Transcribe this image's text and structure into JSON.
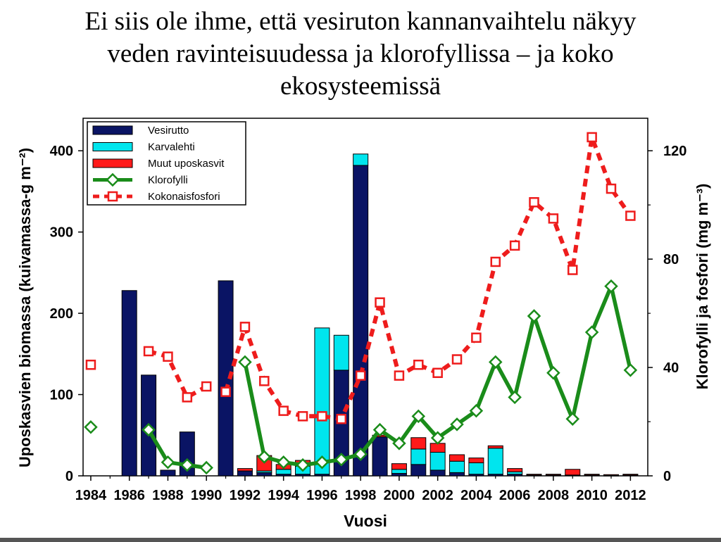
{
  "slide": {
    "title_lines": [
      "Ei siis ole ihme, että vesiruton kannanvaihtelu näkyy",
      "veden ravinteisuudessa ja klorofyllissa – ja koko",
      "ekosysteemissä"
    ]
  },
  "chart_data": {
    "type": "bar+line",
    "title": "",
    "xlabel": "Vuosi",
    "ylabel_left": "Uposkasvien biomassa (kuivamassa-g m⁻²)",
    "ylabel_right": "Klorofylli ja fosfori (mg m⁻³)",
    "ylim_left": [
      0,
      440
    ],
    "ylim_right": [
      0,
      132
    ],
    "yticks_left": [
      0,
      100,
      200,
      300,
      400
    ],
    "yticks_right": [
      0,
      40,
      80,
      120
    ],
    "xlim": [
      1983.6,
      2012.9
    ],
    "xticks": [
      1984,
      1986,
      1988,
      1990,
      1992,
      1994,
      1996,
      1998,
      2000,
      2002,
      2004,
      2006,
      2008,
      2010,
      2012
    ],
    "legend_position": "top-left",
    "bar_series": [
      {
        "name": "Vesirutto",
        "color": "#0a1464",
        "stroke": "#000000",
        "data": [
          [
            1986,
            228
          ],
          [
            1987,
            124
          ],
          [
            1988,
            7
          ],
          [
            1989,
            54
          ],
          [
            1991,
            240
          ],
          [
            1992,
            6
          ],
          [
            1993,
            4
          ],
          [
            1994,
            2
          ],
          [
            1995,
            2
          ],
          [
            1996,
            2
          ],
          [
            1997,
            130
          ],
          [
            1998,
            382
          ],
          [
            1999,
            48
          ],
          [
            2000,
            3
          ],
          [
            2001,
            14
          ],
          [
            2002,
            7
          ],
          [
            2003,
            4
          ],
          [
            2004,
            2
          ],
          [
            2005,
            2
          ],
          [
            2006,
            2
          ],
          [
            2007,
            1
          ],
          [
            2008,
            1
          ],
          [
            2009,
            1
          ],
          [
            2010,
            1
          ],
          [
            2011,
            0.5
          ],
          [
            2012,
            1
          ]
        ]
      },
      {
        "name": "Karvalehti",
        "color": "#00e5ee",
        "stroke": "#000000",
        "data": [
          [
            1992,
            0
          ],
          [
            1993,
            2
          ],
          [
            1994,
            6
          ],
          [
            1995,
            10
          ],
          [
            1996,
            180
          ],
          [
            1997,
            43
          ],
          [
            1998,
            14
          ],
          [
            1999,
            0
          ],
          [
            2000,
            5
          ],
          [
            2001,
            19
          ],
          [
            2002,
            22
          ],
          [
            2003,
            14
          ],
          [
            2004,
            14
          ],
          [
            2005,
            32
          ],
          [
            2006,
            3
          ],
          [
            2007,
            0
          ],
          [
            2008,
            0
          ],
          [
            2009,
            0
          ],
          [
            2010,
            0
          ],
          [
            2011,
            0
          ],
          [
            2012,
            0
          ]
        ]
      },
      {
        "name": "Muut uposkasvit",
        "color": "#ff1a1a",
        "stroke": "#000000",
        "data": [
          [
            1992,
            3
          ],
          [
            1993,
            19
          ],
          [
            1994,
            6
          ],
          [
            1995,
            7
          ],
          [
            1999,
            2
          ],
          [
            2000,
            7
          ],
          [
            2001,
            14
          ],
          [
            2002,
            11
          ],
          [
            2003,
            8
          ],
          [
            2004,
            6
          ],
          [
            2005,
            3
          ],
          [
            2006,
            4
          ],
          [
            2007,
            1
          ],
          [
            2008,
            1
          ],
          [
            2009,
            7
          ],
          [
            2010,
            1
          ],
          [
            2011,
            1
          ],
          [
            2012,
            1
          ]
        ]
      }
    ],
    "line_series": [
      {
        "name": "Klorofylli",
        "color": "#1a8c1a",
        "marker": "diamond",
        "axis": "right",
        "segments": [
          [
            [
              1984,
              18
            ]
          ],
          [
            [
              1987,
              17
            ],
            [
              1988,
              5
            ],
            [
              1989,
              4
            ],
            [
              1990,
              3
            ]
          ],
          [
            [
              1992,
              42
            ],
            [
              1993,
              7
            ],
            [
              1994,
              5
            ],
            [
              1995,
              4
            ],
            [
              1996,
              5
            ],
            [
              1997,
              6
            ],
            [
              1998,
              8
            ],
            [
              1999,
              17
            ],
            [
              2000,
              12
            ],
            [
              2001,
              22
            ],
            [
              2002,
              14
            ],
            [
              2003,
              19
            ],
            [
              2004,
              24
            ],
            [
              2005,
              42
            ],
            [
              2006,
              29
            ],
            [
              2007,
              59
            ],
            [
              2008,
              38
            ],
            [
              2009,
              21
            ],
            [
              2010,
              53
            ],
            [
              2011,
              70
            ],
            [
              2012,
              39
            ]
          ]
        ]
      },
      {
        "name": "Kokonaisfosfori",
        "color": "#ee1c1c",
        "marker": "square",
        "axis": "right",
        "dashed": true,
        "segments": [
          [
            [
              1984,
              41
            ]
          ],
          [
            [
              1987,
              46
            ],
            [
              1988,
              44
            ],
            [
              1989,
              29
            ],
            [
              1990,
              33
            ]
          ],
          [
            [
              1991,
              31
            ],
            [
              1992,
              55
            ],
            [
              1993,
              35
            ],
            [
              1994,
              24
            ],
            [
              1995,
              22
            ],
            [
              1996,
              22
            ],
            [
              1997,
              21
            ],
            [
              1998,
              37
            ],
            [
              1999,
              64
            ],
            [
              2000,
              37
            ],
            [
              2001,
              41
            ],
            [
              2002,
              38
            ],
            [
              2003,
              43
            ],
            [
              2004,
              51
            ],
            [
              2005,
              79
            ],
            [
              2006,
              85
            ],
            [
              2007,
              101
            ],
            [
              2008,
              95
            ],
            [
              2009,
              76
            ],
            [
              2010,
              125
            ],
            [
              2011,
              106
            ],
            [
              2012,
              96
            ]
          ]
        ]
      }
    ]
  }
}
